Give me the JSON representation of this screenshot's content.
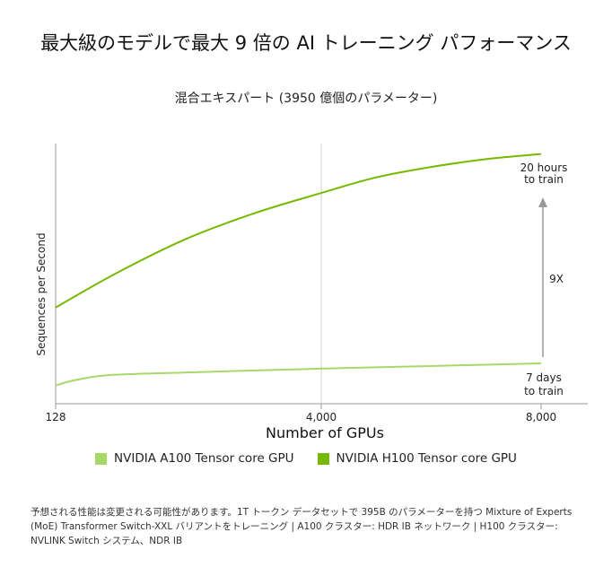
{
  "title": "最大級のモデルで最大 9 倍の AI トレーニング パフォーマンス",
  "subtitle": "混合エキスパート (3950 億個のパラメーター)",
  "chart_data": {
    "type": "line",
    "xlabel": "Number of GPUs",
    "ylabel": "Sequences per Second",
    "x_ticks": [
      "128",
      "4,000",
      "8,000"
    ],
    "x_tick_values": [
      128,
      4000,
      8000
    ],
    "xlim": [
      128,
      8000
    ],
    "ylim": [
      0,
      1
    ],
    "series": [
      {
        "name": "NVIDIA A100 Tensor core GPU",
        "color": "#a6d96a",
        "x": [
          128,
          400,
          900,
          2000,
          4000,
          6000,
          8000
        ],
        "y": [
          0.07,
          0.09,
          0.11,
          0.12,
          0.135,
          0.145,
          0.155
        ]
      },
      {
        "name": "NVIDIA H100 Tensor core GPU",
        "color": "#76b900",
        "x": [
          128,
          1000,
          2000,
          3000,
          4000,
          5000,
          6000,
          7000,
          8000
        ],
        "y": [
          0.37,
          0.5,
          0.63,
          0.73,
          0.81,
          0.87,
          0.91,
          0.94,
          0.96
        ]
      }
    ],
    "annotations": {
      "top_line1": "20 hours",
      "top_line2": "to train",
      "bottom_line1": "7 days",
      "bottom_line2": "to train",
      "speedup": "9X"
    },
    "grid": "vertical line at 4,000"
  },
  "footnote": "予想される性能は変更される可能性があります。1T トークン データセットで 395B のパラメーターを持つ Mixture of Experts (MoE) Transformer Switch-XXL バリアントをトレーニング | A100 クラスター: HDR IB ネットワーク | H100 クラスター: NVLINK Switch システム、NDR IB"
}
